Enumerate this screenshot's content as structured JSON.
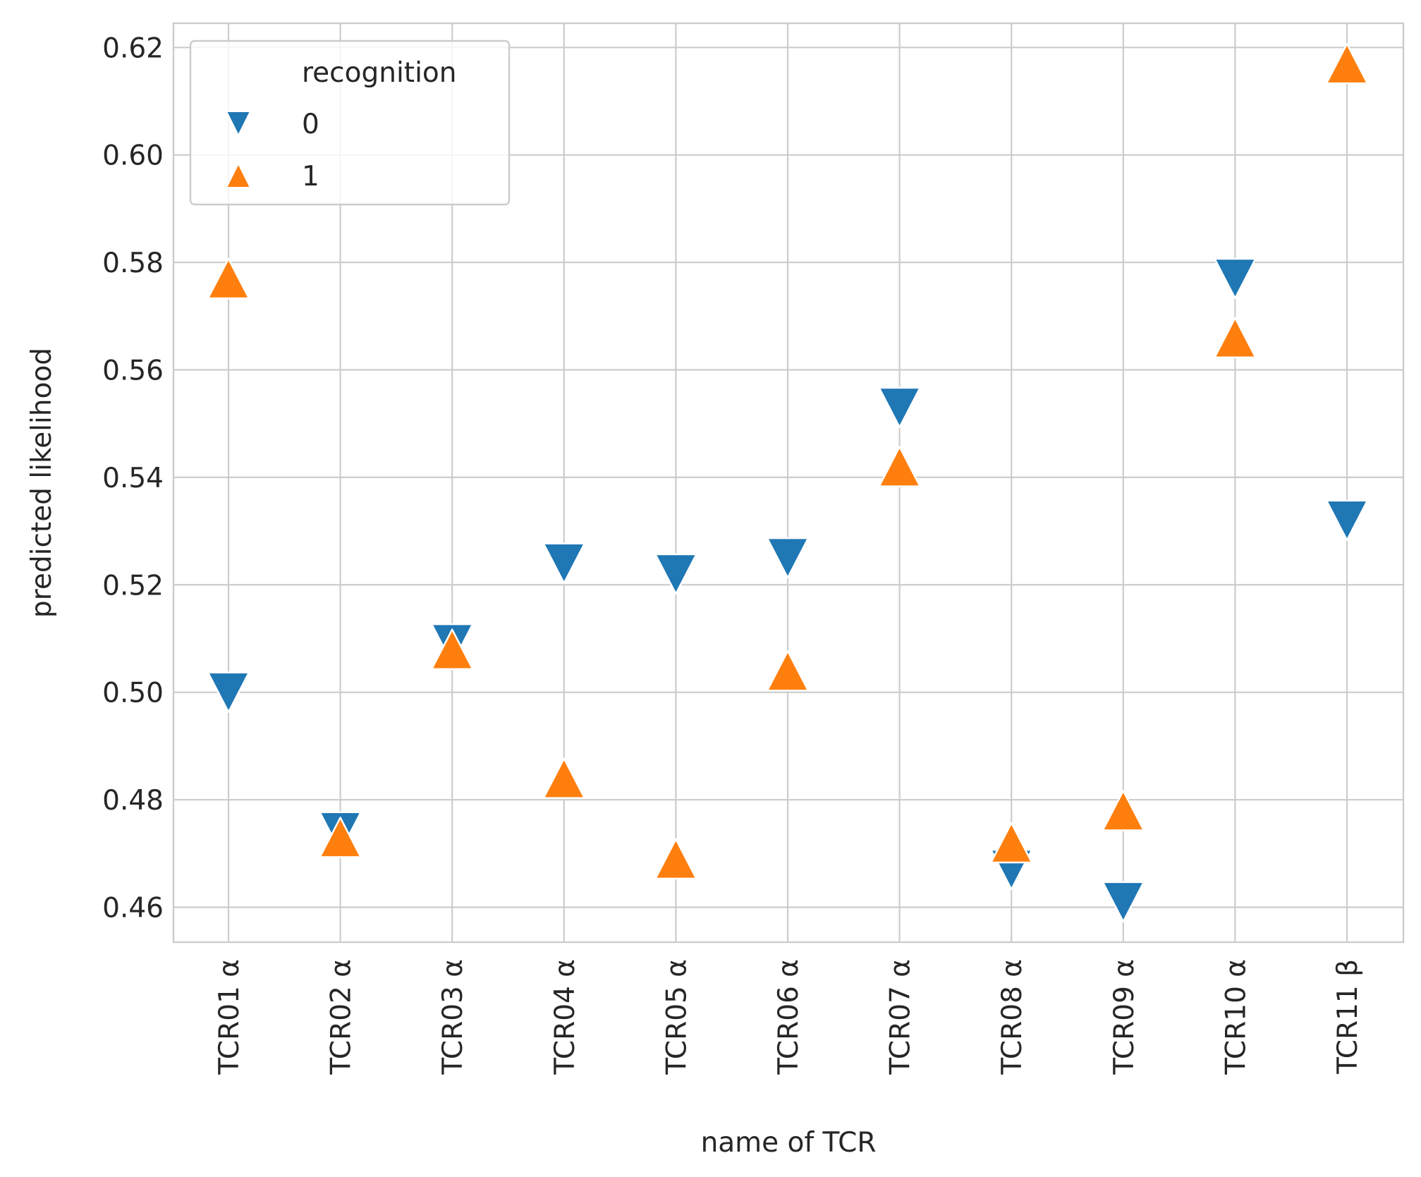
{
  "chart_data": {
    "type": "scatter",
    "title": "",
    "xlabel": "name of TCR",
    "ylabel": "predicted likelihood",
    "categories": [
      "TCR01 α",
      "TCR02 α",
      "TCR03 α",
      "TCR04 α",
      "TCR05 α",
      "TCR06 α",
      "TCR07 α",
      "TCR08 α",
      "TCR09 α",
      "TCR10 α",
      "TCR11 β"
    ],
    "ylim": [
      0.4535,
      0.6245
    ],
    "yticks": [
      "0.46",
      "0.48",
      "0.50",
      "0.52",
      "0.54",
      "0.56",
      "0.58",
      "0.60",
      "0.62"
    ],
    "grid": true,
    "legend": {
      "title": "recognition",
      "placement": "top-left"
    },
    "series": [
      {
        "name": "0",
        "marker": "triangle-down",
        "color": "#1f77b4",
        "values": [
          0.5,
          0.474,
          0.509,
          0.524,
          0.522,
          0.525,
          0.553,
          0.467,
          0.461,
          0.577,
          0.532
        ]
      },
      {
        "name": "1",
        "marker": "triangle-up",
        "color": "#ff7f0e",
        "values": [
          0.577,
          0.473,
          0.508,
          0.484,
          0.469,
          0.504,
          0.542,
          0.472,
          0.478,
          0.566,
          0.617
        ]
      }
    ]
  }
}
